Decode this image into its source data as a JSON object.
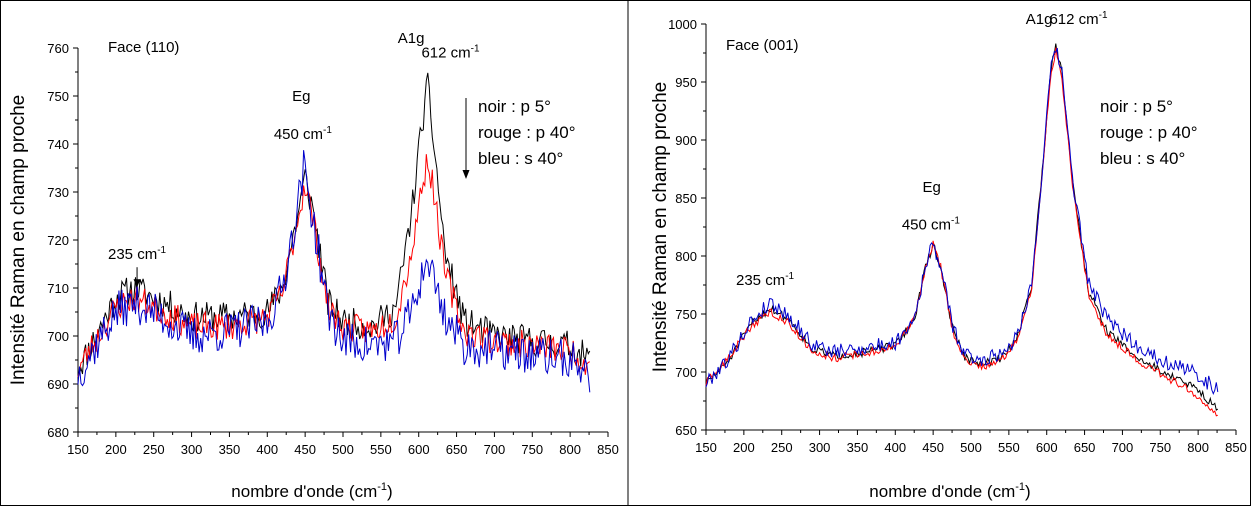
{
  "chart_data": [
    {
      "type": "line",
      "panel_label": "Face (110)",
      "xlabel": "nombre d'onde (cm",
      "xlabel_sup": "-1",
      "xlabel_end": ")",
      "ylabel": "Intensité Raman en champ proche",
      "xlim": [
        150,
        850
      ],
      "ylim": [
        680,
        760
      ],
      "xticks": [
        150,
        200,
        250,
        300,
        350,
        400,
        450,
        500,
        550,
        600,
        650,
        700,
        750,
        800,
        850
      ],
      "yticks": [
        680,
        690,
        700,
        710,
        720,
        730,
        740,
        750,
        760
      ],
      "grid": false,
      "legend": [
        "noir :  p 5°",
        "rouge :  p 40°",
        "bleu :  s 40°"
      ],
      "legend_arrow": true,
      "annotations": [
        {
          "text": "235 cm",
          "sup": "-1",
          "x": 228,
          "y": 716,
          "arrow": true
        },
        {
          "text": "Eg",
          "x": 445,
          "y": 749
        },
        {
          "text": "450 cm",
          "sup": "-1",
          "x": 447,
          "y": 741
        },
        {
          "text": "A1g",
          "x": 590,
          "y": 761
        },
        {
          "text": "612 cm",
          "sup": "-1",
          "x": 642,
          "y": 758
        }
      ],
      "series": [
        {
          "name": "noir",
          "color": "#000000",
          "noise": 3.2,
          "seed": 11,
          "base": [
            [
              150,
              693
            ],
            [
              200,
              708
            ],
            [
              225,
              710
            ],
            [
              250,
              708
            ],
            [
              300,
              704
            ],
            [
              350,
              704
            ],
            [
              400,
              705
            ],
            [
              420,
              710
            ],
            [
              440,
              725
            ],
            [
              450,
              733
            ],
            [
              462,
              725
            ],
            [
              480,
              707
            ],
            [
              500,
              703
            ],
            [
              540,
              702
            ],
            [
              570,
              706
            ],
            [
              590,
              725
            ],
            [
              605,
              745
            ],
            [
              612,
              752
            ],
            [
              620,
              740
            ],
            [
              635,
              717
            ],
            [
              660,
              703
            ],
            [
              700,
              700
            ],
            [
              750,
              699
            ],
            [
              800,
              698
            ],
            [
              825,
              695
            ]
          ]
        },
        {
          "name": "rouge",
          "color": "#ff0000",
          "noise": 3.0,
          "seed": 23,
          "base": [
            [
              150,
              693
            ],
            [
              200,
              706
            ],
            [
              225,
              708
            ],
            [
              250,
              706
            ],
            [
              300,
              702
            ],
            [
              350,
              702
            ],
            [
              400,
              704
            ],
            [
              420,
              709
            ],
            [
              440,
              724
            ],
            [
              450,
              732
            ],
            [
              462,
              723
            ],
            [
              480,
              706
            ],
            [
              500,
              702
            ],
            [
              540,
              701
            ],
            [
              570,
              704
            ],
            [
              590,
              717
            ],
            [
              605,
              732
            ],
            [
              612,
              737
            ],
            [
              620,
              730
            ],
            [
              635,
              713
            ],
            [
              660,
              701
            ],
            [
              700,
              699
            ],
            [
              750,
              698
            ],
            [
              800,
              697
            ],
            [
              825,
              694
            ]
          ]
        },
        {
          "name": "bleu",
          "color": "#0000cc",
          "noise": 4.2,
          "seed": 37,
          "base": [
            [
              150,
              692
            ],
            [
              200,
              705
            ],
            [
              225,
              707
            ],
            [
              250,
              705
            ],
            [
              300,
              700
            ],
            [
              350,
              701
            ],
            [
              400,
              703
            ],
            [
              420,
              710
            ],
            [
              440,
              727
            ],
            [
              448,
              735
            ],
            [
              460,
              725
            ],
            [
              480,
              705
            ],
            [
              500,
              699
            ],
            [
              540,
              698
            ],
            [
              570,
              699
            ],
            [
              590,
              705
            ],
            [
              605,
              713
            ],
            [
              612,
              716
            ],
            [
              620,
              712
            ],
            [
              635,
              704
            ],
            [
              660,
              698
            ],
            [
              700,
              697
            ],
            [
              750,
              696
            ],
            [
              800,
              695
            ],
            [
              825,
              692
            ]
          ]
        }
      ]
    },
    {
      "type": "line",
      "panel_label": "Face (001)",
      "xlabel": "nombre d'onde (cm",
      "xlabel_sup": "-1",
      "xlabel_end": ")",
      "ylabel": "Intensité Raman en champ proche",
      "xlim": [
        150,
        850
      ],
      "ylim": [
        650,
        1000
      ],
      "xticks": [
        150,
        200,
        250,
        300,
        350,
        400,
        450,
        500,
        550,
        600,
        650,
        700,
        750,
        800,
        850
      ],
      "yticks": [
        650,
        700,
        750,
        800,
        850,
        900,
        950,
        1000
      ],
      "grid": false,
      "legend": [
        "noir :  p 5°",
        "rouge :  p 40°",
        "bleu :  s 40°"
      ],
      "legend_arrow": false,
      "annotations": [
        {
          "text": "235 cm",
          "sup": "-1",
          "x": 228,
          "y": 775
        },
        {
          "text": "Eg",
          "x": 448,
          "y": 855
        },
        {
          "text": "450 cm",
          "sup": "-1",
          "x": 447,
          "y": 823
        },
        {
          "text": "A1g",
          "x": 590,
          "y": 1000
        },
        {
          "text": "612 cm",
          "sup": "-1",
          "x": 642,
          "y": 1000
        }
      ],
      "series": [
        {
          "name": "noir",
          "color": "#000000",
          "noise": 3.5,
          "seed": 51,
          "base": [
            [
              150,
              690
            ],
            [
              180,
              710
            ],
            [
              210,
              742
            ],
            [
              235,
              755
            ],
            [
              260,
              745
            ],
            [
              290,
              720
            ],
            [
              320,
              714
            ],
            [
              360,
              717
            ],
            [
              400,
              723
            ],
            [
              425,
              745
            ],
            [
              440,
              790
            ],
            [
              450,
              810
            ],
            [
              460,
              790
            ],
            [
              475,
              740
            ],
            [
              490,
              714
            ],
            [
              510,
              706
            ],
            [
              540,
              712
            ],
            [
              560,
              728
            ],
            [
              580,
              775
            ],
            [
              595,
              880
            ],
            [
              605,
              960
            ],
            [
              612,
              982
            ],
            [
              620,
              960
            ],
            [
              635,
              860
            ],
            [
              655,
              770
            ],
            [
              680,
              735
            ],
            [
              720,
              712
            ],
            [
              760,
              698
            ],
            [
              800,
              685
            ],
            [
              825,
              668
            ]
          ]
        },
        {
          "name": "rouge",
          "color": "#ff0000",
          "noise": 3.5,
          "seed": 63,
          "base": [
            [
              150,
              690
            ],
            [
              180,
              712
            ],
            [
              210,
              740
            ],
            [
              235,
              752
            ],
            [
              260,
              742
            ],
            [
              290,
              718
            ],
            [
              320,
              712
            ],
            [
              360,
              716
            ],
            [
              400,
              722
            ],
            [
              425,
              745
            ],
            [
              440,
              790
            ],
            [
              450,
              810
            ],
            [
              460,
              790
            ],
            [
              475,
              738
            ],
            [
              490,
              712
            ],
            [
              510,
              704
            ],
            [
              540,
              710
            ],
            [
              560,
              726
            ],
            [
              580,
              772
            ],
            [
              595,
              875
            ],
            [
              605,
              955
            ],
            [
              612,
              977
            ],
            [
              620,
              955
            ],
            [
              635,
              855
            ],
            [
              655,
              768
            ],
            [
              680,
              732
            ],
            [
              720,
              710
            ],
            [
              760,
              695
            ],
            [
              800,
              680
            ],
            [
              825,
              664
            ]
          ]
        },
        {
          "name": "bleu",
          "color": "#0000cc",
          "noise": 6.5,
          "seed": 79,
          "base": [
            [
              150,
              690
            ],
            [
              180,
              712
            ],
            [
              210,
              744
            ],
            [
              235,
              760
            ],
            [
              260,
              748
            ],
            [
              290,
              724
            ],
            [
              320,
              717
            ],
            [
              360,
              721
            ],
            [
              400,
              725
            ],
            [
              425,
              747
            ],
            [
              440,
              790
            ],
            [
              450,
              812
            ],
            [
              460,
              790
            ],
            [
              475,
              742
            ],
            [
              490,
              716
            ],
            [
              510,
              710
            ],
            [
              540,
              716
            ],
            [
              560,
              730
            ],
            [
              580,
              776
            ],
            [
              595,
              878
            ],
            [
              605,
              958
            ],
            [
              612,
              980
            ],
            [
              620,
              958
            ],
            [
              635,
              862
            ],
            [
              655,
              778
            ],
            [
              680,
              745
            ],
            [
              720,
              722
            ],
            [
              760,
              708
            ],
            [
              800,
              698
            ],
            [
              825,
              684
            ]
          ]
        }
      ]
    }
  ]
}
